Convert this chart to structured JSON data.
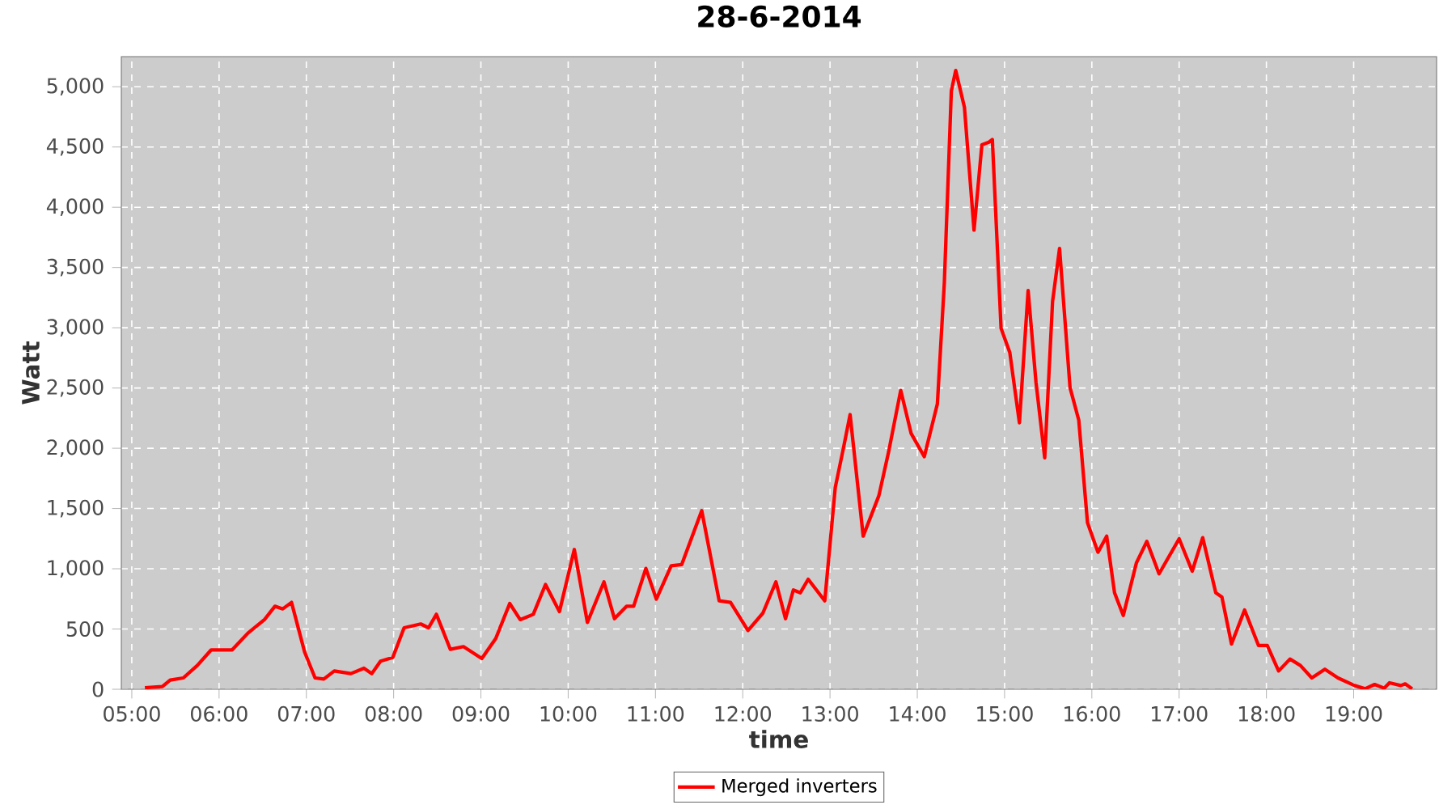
{
  "chart_data": {
    "type": "line",
    "title": "28-6-2014",
    "xlabel": "time",
    "ylabel": "Watt",
    "x": [
      5.15,
      5.35,
      5.44,
      5.59,
      5.75,
      5.91,
      6.15,
      6.33,
      6.52,
      6.64,
      6.73,
      6.83,
      6.98,
      7.1,
      7.2,
      7.32,
      7.51,
      7.66,
      7.75,
      7.85,
      7.99,
      8.12,
      8.31,
      8.4,
      8.49,
      8.65,
      8.8,
      9.01,
      9.17,
      9.33,
      9.45,
      9.6,
      9.74,
      9.9,
      10.07,
      10.22,
      10.41,
      10.53,
      10.67,
      10.75,
      10.89,
      11.01,
      11.18,
      11.3,
      11.53,
      11.73,
      11.86,
      12.06,
      12.23,
      12.38,
      12.49,
      12.58,
      12.66,
      12.75,
      12.94,
      13.06,
      13.15,
      13.23,
      13.38,
      13.56,
      13.67,
      13.81,
      13.93,
      14.08,
      14.23,
      14.31,
      14.39,
      14.44,
      14.54,
      14.65,
      14.74,
      14.82,
      14.86,
      14.96,
      15.06,
      15.17,
      15.27,
      15.36,
      15.46,
      15.55,
      15.63,
      15.75,
      15.85,
      15.95,
      16.07,
      16.17,
      16.26,
      16.36,
      16.51,
      16.63,
      16.77,
      17.0,
      17.15,
      17.27,
      17.42,
      17.49,
      17.6,
      17.75,
      17.91,
      18.01,
      18.14,
      18.27,
      18.39,
      18.52,
      18.67,
      18.82,
      19.01,
      19.13,
      19.24,
      19.35,
      19.41,
      19.54,
      19.59,
      19.67
    ],
    "series": [
      {
        "name": "Merged inverters",
        "color": "#ff0000",
        "values": [
          13,
          22,
          76,
          94,
          197,
          327,
          327,
          466,
          578,
          689,
          667,
          721,
          309,
          94,
          85,
          152,
          130,
          175,
          130,
          233,
          264,
          510,
          542,
          510,
          622,
          331,
          354,
          255,
          421,
          712,
          578,
          622,
          869,
          645,
          1160,
          555,
          891,
          586,
          689,
          689,
          1003,
          748,
          1025,
          1034,
          1482,
          734,
          721,
          488,
          631,
          891,
          586,
          824,
          801,
          913,
          734,
          1674,
          1988,
          2279,
          1271,
          1607,
          1965,
          2480,
          2122,
          1930,
          2368,
          3376,
          4965,
          5135,
          4831,
          3810,
          4518,
          4540,
          4562,
          2995,
          2794,
          2212,
          3309,
          2548,
          1921,
          3219,
          3658,
          2503,
          2234,
          1383,
          1137,
          1271,
          801,
          613,
          1048,
          1227,
          958,
          1249,
          980,
          1258,
          801,
          766,
          376,
          658,
          363,
          363,
          152,
          251,
          197,
          94,
          166,
          94,
          31,
          4,
          40,
          9,
          54,
          31,
          45,
          4
        ]
      }
    ],
    "xlim": [
      4.88,
      19.95
    ],
    "ylim": [
      0,
      5250
    ],
    "xticks": [
      {
        "value": 5,
        "label": "05:00"
      },
      {
        "value": 6,
        "label": "06:00"
      },
      {
        "value": 7,
        "label": "07:00"
      },
      {
        "value": 8,
        "label": "08:00"
      },
      {
        "value": 9,
        "label": "09:00"
      },
      {
        "value": 10,
        "label": "10:00"
      },
      {
        "value": 11,
        "label": "11:00"
      },
      {
        "value": 12,
        "label": "12:00"
      },
      {
        "value": 13,
        "label": "13:00"
      },
      {
        "value": 14,
        "label": "14:00"
      },
      {
        "value": 15,
        "label": "15:00"
      },
      {
        "value": 16,
        "label": "16:00"
      },
      {
        "value": 17,
        "label": "17:00"
      },
      {
        "value": 18,
        "label": "18:00"
      },
      {
        "value": 19,
        "label": "19:00"
      }
    ],
    "yticks": [
      0,
      500,
      {
        "value": 1000,
        "label": "1,000"
      },
      {
        "value": 1500,
        "label": "1,500"
      },
      {
        "value": 2000,
        "label": "2,000"
      },
      {
        "value": 2500,
        "label": "2,500"
      },
      {
        "value": 3000,
        "label": "3,000"
      },
      {
        "value": 3500,
        "label": "3,500"
      },
      {
        "value": 4000,
        "label": "4,000"
      },
      {
        "value": 4500,
        "label": "4,500"
      },
      {
        "value": 5000,
        "label": "5,000"
      }
    ],
    "grid": true,
    "legend": "bottom",
    "marker": "none",
    "line_style": "solid"
  }
}
